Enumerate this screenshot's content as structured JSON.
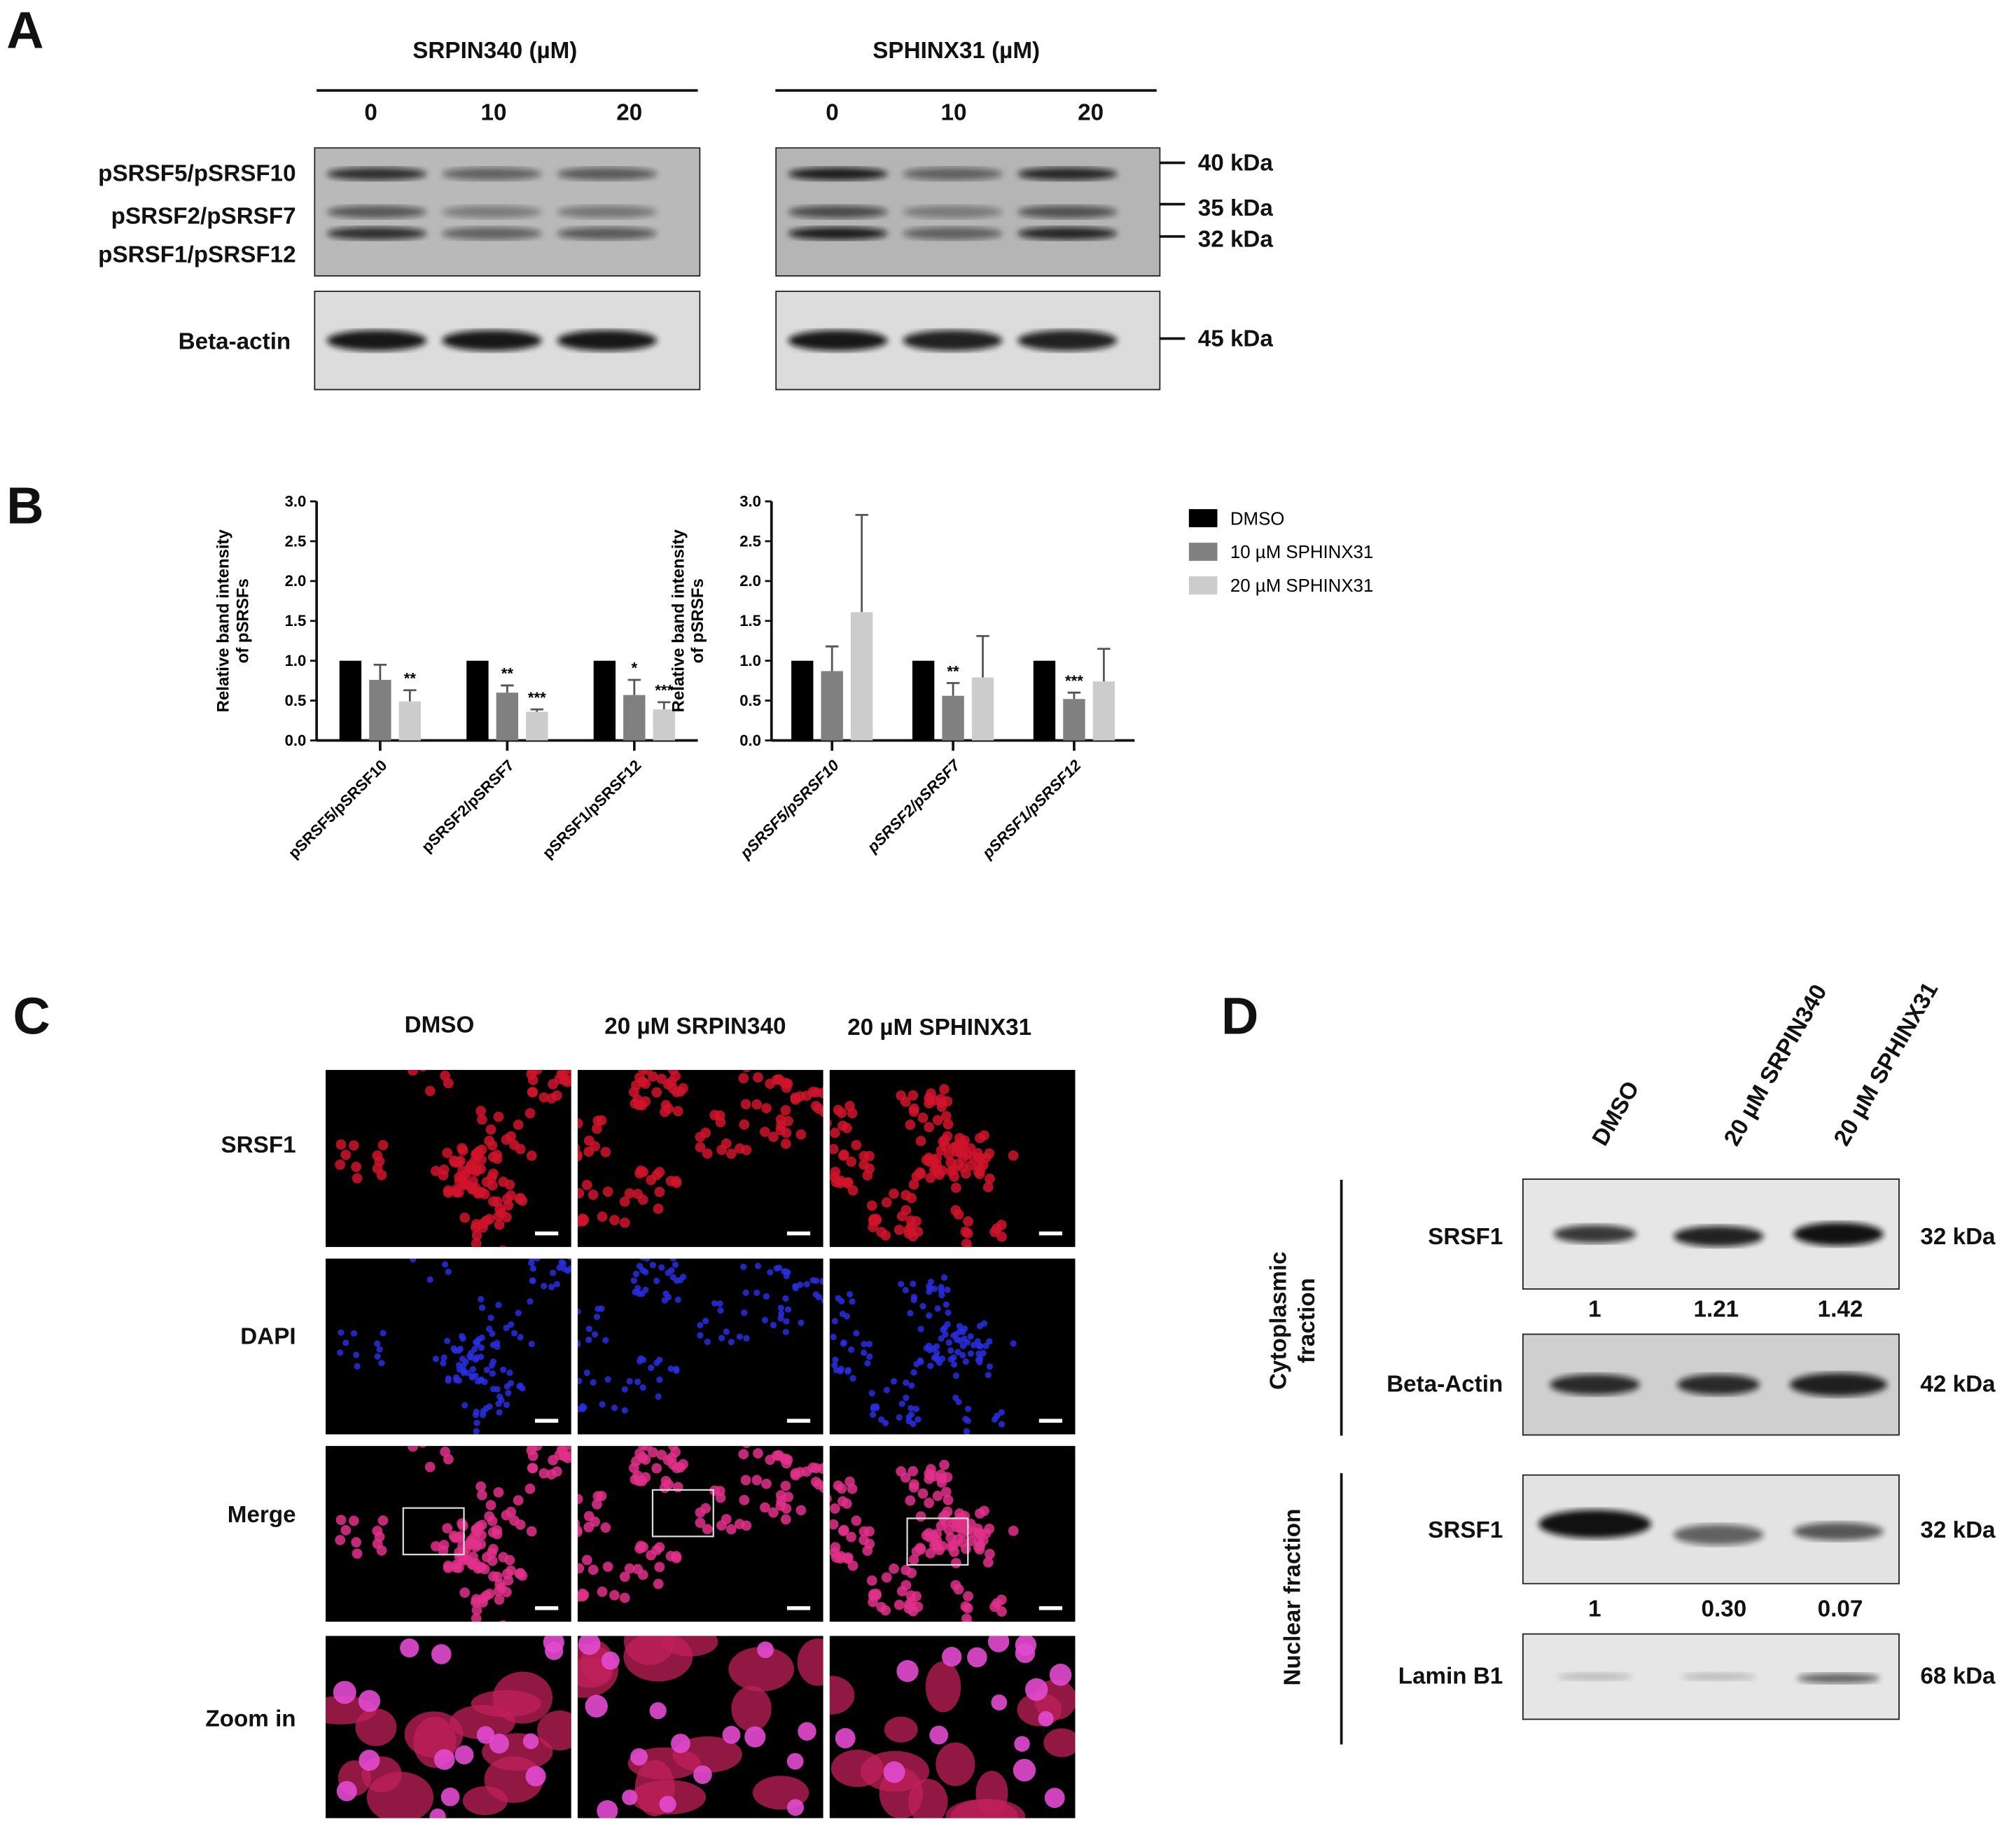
{
  "panel_a": {
    "label": "A",
    "groups": [
      {
        "title": "SRPIN340 (µM)",
        "lanes": [
          "0",
          "10",
          "20"
        ]
      },
      {
        "title": "SPHINX31 (µM)",
        "lanes": [
          "0",
          "10",
          "20"
        ]
      }
    ],
    "row_labels": [
      "pSRSF5/pSRSF10",
      "pSRSF2/pSRSF7",
      "pSRSF1/pSRSF12",
      "Beta-actin"
    ],
    "markers": [
      "40 kDa",
      "35 kDa",
      "32 kDa",
      "45 kDa"
    ]
  },
  "panel_b": {
    "label": "B"
  },
  "chart_data": [
    {
      "type": "bar",
      "ylabel": "Relative band intensity of pSRSFs",
      "ylim": [
        0,
        3.0
      ],
      "yticks": [
        "0.0",
        "0.5",
        "1.0",
        "1.5",
        "2.0",
        "2.5",
        "3.0"
      ],
      "categories": [
        "pSRSF5/pSRSF10",
        "pSRSF2/pSRSF7",
        "pSRSF1/pSRSF12"
      ],
      "series": [
        {
          "values": [
            1.0,
            1.0,
            1.0
          ],
          "error_upper": [
            1.0,
            1.0,
            1.0
          ],
          "significance": [
            "",
            "",
            ""
          ],
          "color": "#000000"
        },
        {
          "values": [
            0.76,
            0.6,
            0.57
          ],
          "error_upper": [
            0.95,
            0.69,
            0.76
          ],
          "significance": [
            "",
            "**",
            "*"
          ],
          "color": "#808080"
        },
        {
          "values": [
            0.49,
            0.36,
            0.39
          ],
          "error_upper": [
            0.63,
            0.39,
            0.48
          ],
          "significance": [
            "**",
            "***",
            "***"
          ],
          "color": "#cccccc"
        }
      ]
    },
    {
      "type": "bar",
      "ylabel": "Relative band intensity of pSRSFs",
      "ylim": [
        0,
        3.0
      ],
      "yticks": [
        "0.0",
        "0.5",
        "1.0",
        "1.5",
        "2.0",
        "2.5",
        "3.0"
      ],
      "categories": [
        "pSRSF5/pSRSF10",
        "pSRSF2/pSRSF7",
        "pSRSF1/pSRSF12"
      ],
      "series": [
        {
          "name": "DMSO",
          "values": [
            1.0,
            1.0,
            1.0
          ],
          "error_upper": [
            1.0,
            1.0,
            1.0
          ],
          "significance": [
            "",
            "",
            ""
          ],
          "color": "#000000"
        },
        {
          "name": "10 µM SPHINX31",
          "values": [
            0.87,
            0.56,
            0.52
          ],
          "error_upper": [
            1.18,
            0.72,
            0.6
          ],
          "significance": [
            "",
            "**",
            "***"
          ],
          "color": "#808080"
        },
        {
          "name": "20 µM SPHINX31",
          "values": [
            1.61,
            0.79,
            0.74
          ],
          "error_upper": [
            2.83,
            1.31,
            1.15
          ],
          "significance": [
            "",
            "",
            ""
          ],
          "color": "#cccccc"
        }
      ],
      "legend_position": "right"
    }
  ],
  "panel_c": {
    "label": "C",
    "columns": [
      "DMSO",
      "20 µM SRPIN340",
      "20 µM SPHINX31"
    ],
    "rows": [
      "SRSF1",
      "DAPI",
      "Merge",
      "Zoom in"
    ]
  },
  "panel_d": {
    "label": "D",
    "columns": [
      "DMSO",
      "20 µM SRPIN340",
      "20 µM SPHINX31"
    ],
    "fractions": [
      "Cytoplasmic fraction",
      "Nuclear fraction"
    ],
    "rows": [
      {
        "label": "SRSF1",
        "kda": "32 kDa",
        "values": [
          "1",
          "1.21",
          "1.42"
        ]
      },
      {
        "label": "Beta-Actin",
        "kda": "42 kDa"
      },
      {
        "label": "SRSF1",
        "kda": "32 kDa",
        "values": [
          "1",
          "0.30",
          "0.07"
        ]
      },
      {
        "label": "Lamin B1",
        "kda": "68 kDa"
      }
    ]
  }
}
